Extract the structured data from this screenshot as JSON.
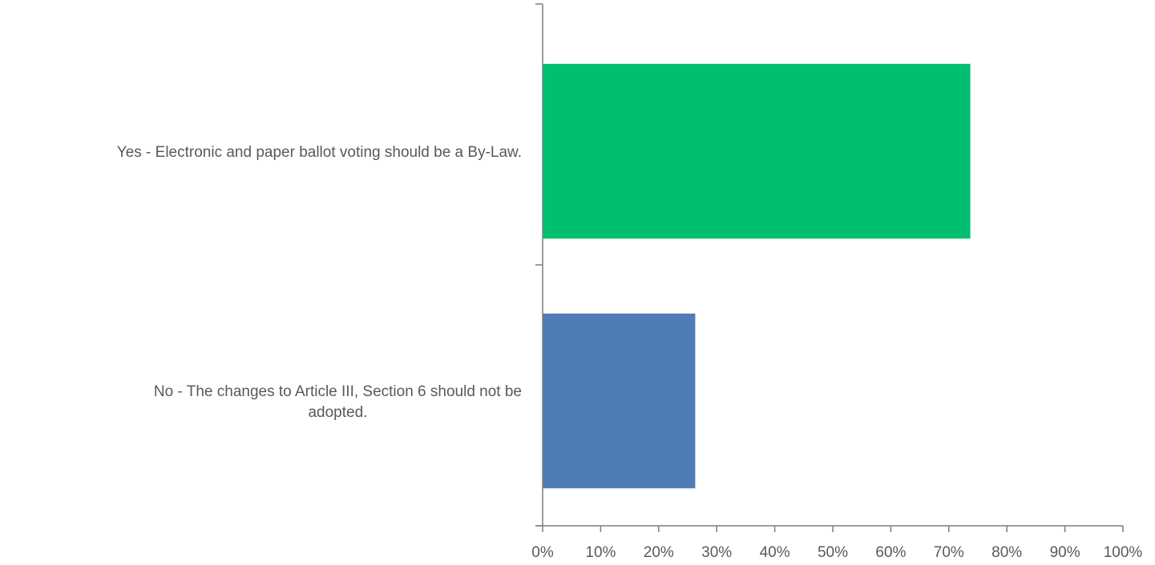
{
  "chart_data": {
    "type": "bar",
    "orientation": "horizontal",
    "categories": [
      "Yes - Electronic and paper ballot voting should be a By-Law.",
      "No - The changes to Article III, Section 6 should not be adopted."
    ],
    "category_label_lines": [
      [
        "Yes - Electronic and paper ballot voting should be a By-Law."
      ],
      [
        "No - The changes to Article III, Section 6 should not be",
        "adopted."
      ]
    ],
    "values": [
      73.7,
      26.3
    ],
    "colors": [
      "#00BF6F",
      "#507CB6"
    ],
    "xlim": [
      0,
      100
    ],
    "xticks": [
      "0%",
      "10%",
      "20%",
      "30%",
      "40%",
      "50%",
      "60%",
      "70%",
      "80%",
      "90%",
      "100%"
    ],
    "axis_color": "#7F7F7F",
    "grid": false,
    "title": "",
    "xlabel": "",
    "ylabel": ""
  }
}
